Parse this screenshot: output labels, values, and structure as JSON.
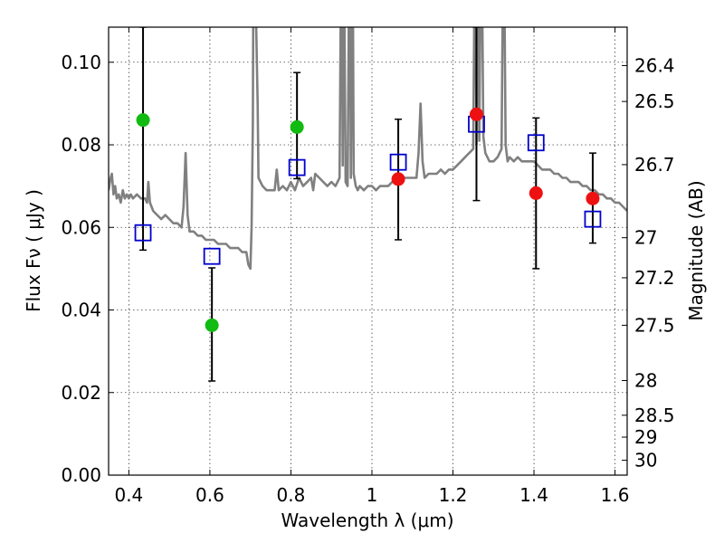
{
  "chart_data": {
    "type": "scatter",
    "title": "",
    "xlabel": "Wavelength  λ (μm)",
    "ylabel": "Flux  Fν  ( μJy )",
    "y2label": "Magnitude (AB)",
    "xlim": [
      0.35,
      1.63
    ],
    "ylim": [
      0.0,
      0.1085
    ],
    "grid": true,
    "x_ticks": [
      {
        "value": 0.4,
        "label": "0.4"
      },
      {
        "value": 0.6,
        "label": "0.6"
      },
      {
        "value": 0.8,
        "label": "0.8"
      },
      {
        "value": 1.0,
        "label": "1"
      },
      {
        "value": 1.2,
        "label": "1.2"
      },
      {
        "value": 1.4,
        "label": "1.4"
      },
      {
        "value": 1.6,
        "label": "1.6"
      }
    ],
    "y_ticks": [
      {
        "value": 0.0,
        "label": "0.00"
      },
      {
        "value": 0.02,
        "label": "0.02"
      },
      {
        "value": 0.04,
        "label": "0.04"
      },
      {
        "value": 0.06,
        "label": "0.06"
      },
      {
        "value": 0.08,
        "label": "0.08"
      },
      {
        "value": 0.1,
        "label": "0.10"
      }
    ],
    "y2_ticks": [
      {
        "flux": 0.0992,
        "label": "26.4"
      },
      {
        "flux": 0.0905,
        "label": "26.5"
      },
      {
        "flux": 0.0752,
        "label": "26.7"
      },
      {
        "flux": 0.0575,
        "label": "27"
      },
      {
        "flux": 0.0478,
        "label": "27.2"
      },
      {
        "flux": 0.0363,
        "label": "27.5"
      },
      {
        "flux": 0.0229,
        "label": "28"
      },
      {
        "flux": 0.0145,
        "label": "28.5"
      },
      {
        "flux": 0.0092,
        "label": "29"
      },
      {
        "flux": 0.0036,
        "label": "30"
      }
    ],
    "colors": {
      "model": "#808080",
      "green": "#11bb11",
      "red": "#ee1111",
      "blue": "#0000cc",
      "errorbar": "#000000"
    },
    "series": [
      {
        "kind": "line",
        "x": [
          0.35,
          0.355,
          0.358,
          0.362,
          0.366,
          0.37,
          0.375,
          0.38,
          0.385,
          0.39,
          0.395,
          0.4,
          0.405,
          0.41,
          0.42,
          0.43,
          0.44,
          0.445,
          0.448,
          0.452,
          0.46,
          0.47,
          0.48,
          0.49,
          0.5,
          0.51,
          0.52,
          0.53,
          0.535,
          0.54,
          0.545,
          0.55,
          0.56,
          0.57,
          0.58,
          0.59,
          0.6,
          0.61,
          0.62,
          0.63,
          0.64,
          0.65,
          0.66,
          0.67,
          0.68,
          0.69,
          0.695,
          0.7,
          0.703,
          0.706,
          0.708,
          0.712,
          0.718,
          0.72,
          0.73,
          0.74,
          0.75,
          0.76,
          0.765,
          0.77,
          0.78,
          0.79,
          0.8,
          0.81,
          0.82,
          0.83,
          0.84,
          0.85,
          0.855,
          0.86,
          0.87,
          0.88,
          0.89,
          0.9,
          0.91,
          0.92,
          0.925,
          0.928,
          0.93,
          0.935,
          0.94,
          0.945,
          0.948,
          0.952,
          0.955,
          0.96,
          0.965,
          0.97,
          0.98,
          0.99,
          1.0,
          1.01,
          1.02,
          1.03,
          1.04,
          1.05,
          1.06,
          1.07,
          1.08,
          1.09,
          1.1,
          1.11,
          1.115,
          1.12,
          1.125,
          1.13,
          1.14,
          1.15,
          1.16,
          1.17,
          1.18,
          1.19,
          1.2,
          1.21,
          1.22,
          1.23,
          1.24,
          1.25,
          1.255,
          1.258,
          1.262,
          1.265,
          1.27,
          1.275,
          1.28,
          1.285,
          1.29,
          1.3,
          1.31,
          1.32,
          1.325,
          1.33,
          1.335,
          1.34,
          1.35,
          1.36,
          1.37,
          1.38,
          1.39,
          1.4,
          1.41,
          1.42,
          1.43,
          1.44,
          1.45,
          1.46,
          1.47,
          1.48,
          1.49,
          1.5,
          1.51,
          1.52,
          1.53,
          1.54,
          1.55,
          1.56,
          1.57,
          1.58,
          1.59,
          1.6,
          1.61,
          1.62,
          1.63
        ],
        "y": [
          0.069,
          0.072,
          0.073,
          0.068,
          0.07,
          0.067,
          0.068,
          0.066,
          0.069,
          0.067,
          0.068,
          0.067,
          0.068,
          0.067,
          0.068,
          0.067,
          0.067,
          0.066,
          0.071,
          0.066,
          0.064,
          0.063,
          0.062,
          0.063,
          0.062,
          0.061,
          0.061,
          0.06,
          0.065,
          0.078,
          0.063,
          0.059,
          0.059,
          0.058,
          0.058,
          0.057,
          0.057,
          0.057,
          0.056,
          0.056,
          0.056,
          0.055,
          0.055,
          0.055,
          0.054,
          0.054,
          0.051,
          0.05,
          0.06,
          0.085,
          0.14,
          0.12,
          0.09,
          0.072,
          0.07,
          0.069,
          0.069,
          0.069,
          0.074,
          0.069,
          0.07,
          0.069,
          0.071,
          0.069,
          0.072,
          0.07,
          0.071,
          0.072,
          0.069,
          0.073,
          0.072,
          0.071,
          0.07,
          0.071,
          0.07,
          0.072,
          0.14,
          0.075,
          0.14,
          0.071,
          0.07,
          0.14,
          0.072,
          0.14,
          0.073,
          0.07,
          0.069,
          0.07,
          0.069,
          0.07,
          0.07,
          0.069,
          0.07,
          0.07,
          0.07,
          0.071,
          0.071,
          0.071,
          0.072,
          0.072,
          0.072,
          0.072,
          0.078,
          0.09,
          0.076,
          0.072,
          0.073,
          0.073,
          0.073,
          0.074,
          0.073,
          0.074,
          0.074,
          0.075,
          0.076,
          0.077,
          0.078,
          0.079,
          0.14,
          0.08,
          0.14,
          0.081,
          0.14,
          0.082,
          0.078,
          0.077,
          0.076,
          0.076,
          0.077,
          0.079,
          0.14,
          0.08,
          0.076,
          0.077,
          0.076,
          0.077,
          0.076,
          0.076,
          0.076,
          0.076,
          0.075,
          0.074,
          0.074,
          0.074,
          0.073,
          0.073,
          0.072,
          0.072,
          0.071,
          0.071,
          0.071,
          0.07,
          0.07,
          0.069,
          0.069,
          0.068,
          0.068,
          0.067,
          0.067,
          0.066,
          0.066,
          0.065,
          0.064
        ]
      },
      {
        "kind": "points-green",
        "x": [
          0.435,
          0.605,
          0.815
        ],
        "y": [
          0.086,
          0.0363,
          0.0843
        ]
      },
      {
        "kind": "points-red",
        "x": [
          1.065,
          1.258,
          1.405,
          1.545
        ],
        "y": [
          0.0717,
          0.0874,
          0.0683,
          0.067
        ]
      },
      {
        "kind": "squares-blue",
        "x": [
          0.435,
          0.605,
          0.815,
          1.065,
          1.258,
          1.405,
          1.545
        ],
        "y": [
          0.0587,
          0.053,
          0.0745,
          0.0758,
          0.085,
          0.0805,
          0.062
        ]
      },
      {
        "kind": "errorbars",
        "x": [
          0.435,
          0.605,
          0.815,
          1.065,
          1.258,
          1.405,
          1.545
        ],
        "y_low": [
          0.0545,
          0.0228,
          0.0718,
          0.057,
          0.0665,
          0.05,
          0.0562
        ],
        "y_high": [
          0.1085,
          0.0502,
          0.0975,
          0.0862,
          0.1085,
          0.0865,
          0.078
        ]
      }
    ]
  }
}
